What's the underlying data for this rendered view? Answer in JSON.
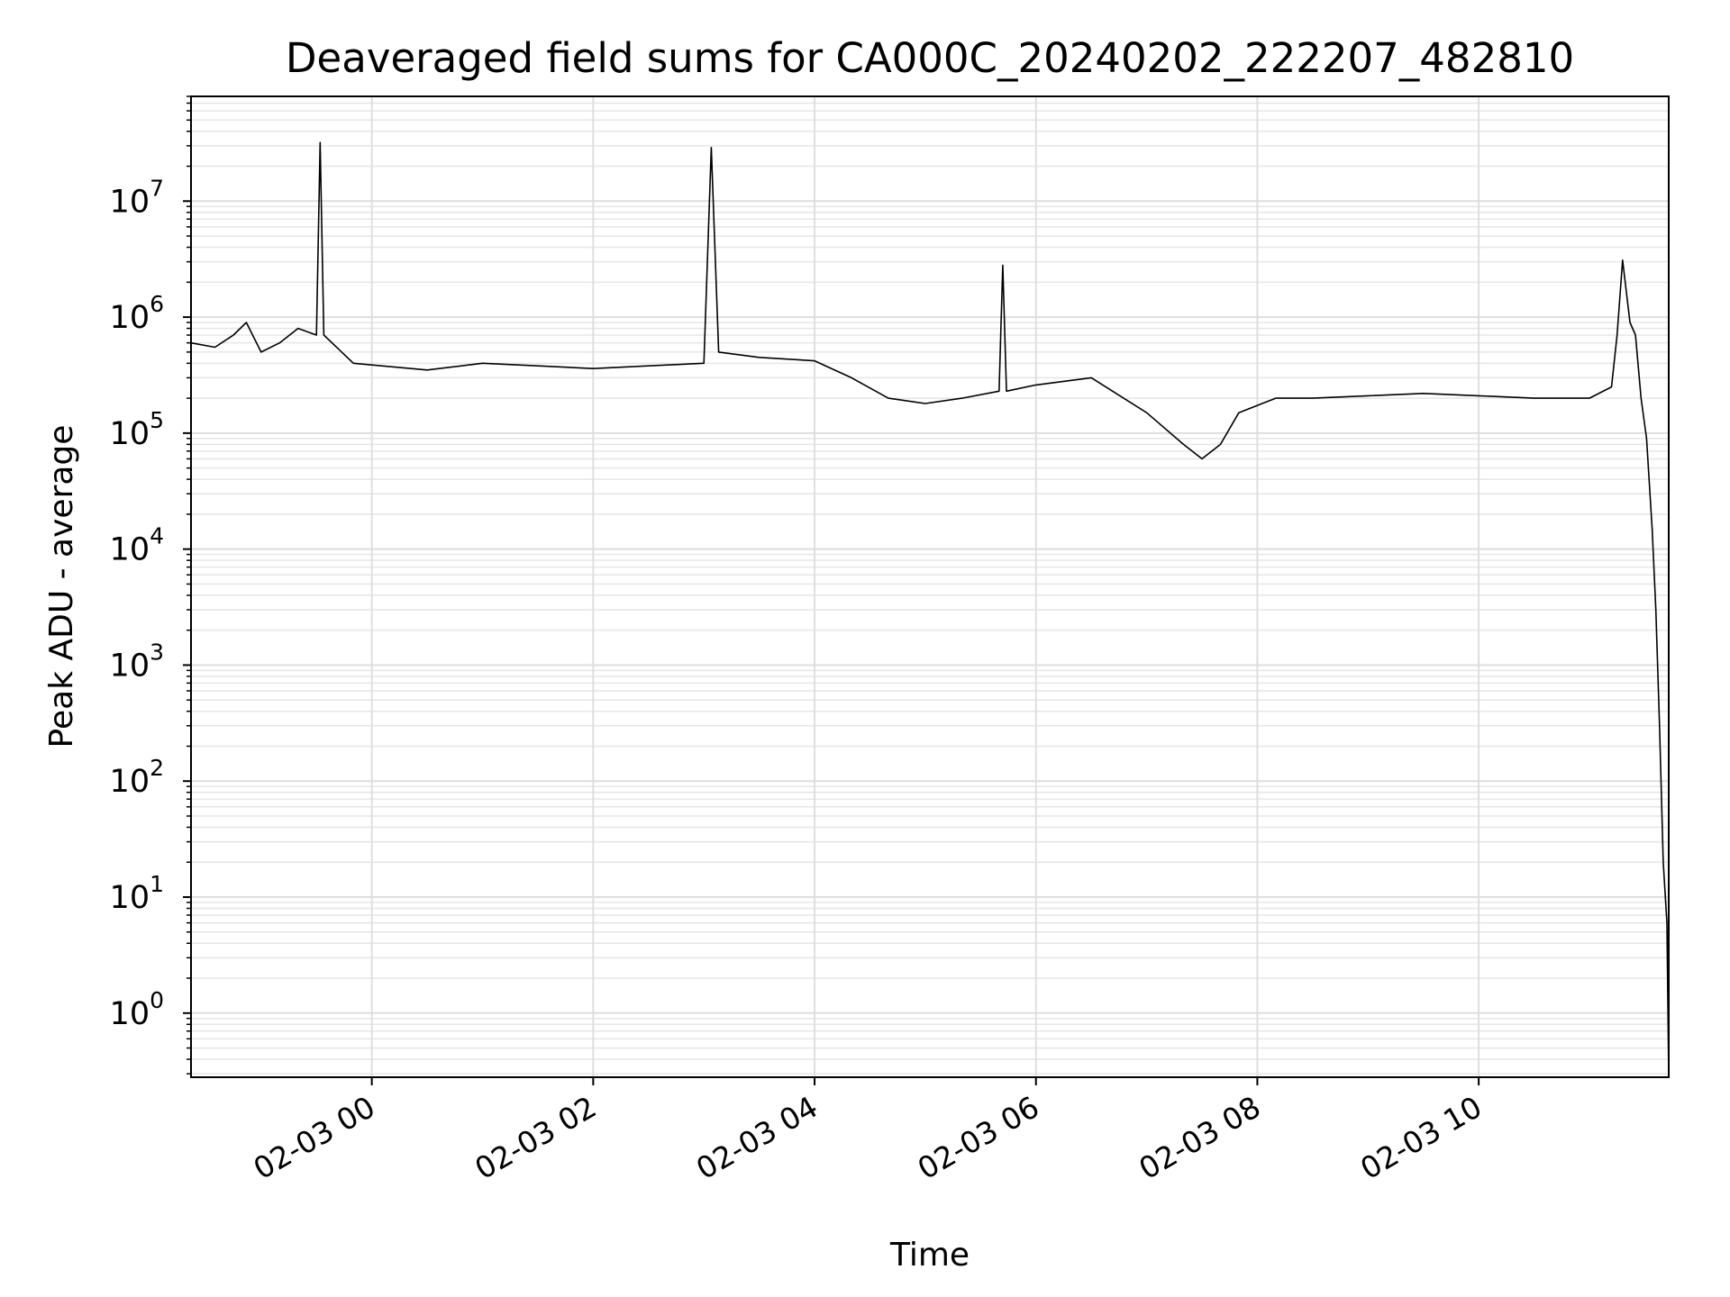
{
  "chart_data": {
    "type": "line",
    "title": "Deaveraged field sums for CA000C_20240202_222207_482810",
    "xlabel": "Time",
    "ylabel": "Peak ADU - average",
    "yscale": "log",
    "grid": true,
    "x_range": [
      "2024-02-02 22:22",
      "2024-02-03 11:43"
    ],
    "ylim": [
      0.28,
      80000000
    ],
    "x_ticks": [
      "02-03 00",
      "02-03 02",
      "02-03 04",
      "02-03 06",
      "02-03 08",
      "02-03 10"
    ],
    "y_ticks": [
      {
        "value": 1,
        "base": "10",
        "exp": "0"
      },
      {
        "value": 10,
        "base": "10",
        "exp": "1"
      },
      {
        "value": 100,
        "base": "10",
        "exp": "2"
      },
      {
        "value": 1000,
        "base": "10",
        "exp": "3"
      },
      {
        "value": 10000,
        "base": "10",
        "exp": "4"
      },
      {
        "value": 100000,
        "base": "10",
        "exp": "5"
      },
      {
        "value": 1000000,
        "base": "10",
        "exp": "6"
      },
      {
        "value": 10000000,
        "base": "10",
        "exp": "7"
      }
    ],
    "line_color": "#000000",
    "series": [
      {
        "x": [
          "2024-02-02 22:22",
          "2024-02-02 22:35",
          "2024-02-02 22:45",
          "2024-02-02 22:52",
          "2024-02-02 23:00",
          "2024-02-02 23:10",
          "2024-02-02 23:20",
          "2024-02-02 23:30",
          "2024-02-02 23:32",
          "2024-02-02 23:34",
          "2024-02-02 23:50",
          "2024-02-03 00:30",
          "2024-02-03 01:00",
          "2024-02-03 01:30",
          "2024-02-03 02:00",
          "2024-02-03 02:30",
          "2024-02-03 03:00",
          "2024-02-03 03:04",
          "2024-02-03 03:08",
          "2024-02-03 03:30",
          "2024-02-03 04:00",
          "2024-02-03 04:20",
          "2024-02-03 04:40",
          "2024-02-03 05:00",
          "2024-02-03 05:20",
          "2024-02-03 05:40",
          "2024-02-03 05:42",
          "2024-02-03 05:44",
          "2024-02-03 06:00",
          "2024-02-03 06:30",
          "2024-02-03 07:00",
          "2024-02-03 07:20",
          "2024-02-03 07:30",
          "2024-02-03 07:40",
          "2024-02-03 07:50",
          "2024-02-03 08:10",
          "2024-02-03 08:30",
          "2024-02-03 09:00",
          "2024-02-03 09:30",
          "2024-02-03 10:00",
          "2024-02-03 10:30",
          "2024-02-03 11:00",
          "2024-02-03 11:12",
          "2024-02-03 11:15",
          "2024-02-03 11:18",
          "2024-02-03 11:22",
          "2024-02-03 11:25",
          "2024-02-03 11:28",
          "2024-02-03 11:31",
          "2024-02-03 11:34",
          "2024-02-03 11:36",
          "2024-02-03 11:38",
          "2024-02-03 11:40",
          "2024-02-03 11:42",
          "2024-02-03 11:43"
        ],
        "y": [
          600000,
          550000,
          700000,
          900000,
          500000,
          600000,
          800000,
          700000,
          32000000,
          700000,
          400000,
          350000,
          400000,
          380000,
          360000,
          380000,
          400000,
          29000000,
          500000,
          450000,
          420000,
          300000,
          200000,
          180000,
          200000,
          230000,
          2800000,
          230000,
          260000,
          300000,
          150000,
          80000,
          60000,
          80000,
          150000,
          200000,
          200000,
          210000,
          220000,
          210000,
          200000,
          200000,
          250000,
          700000,
          3100000,
          900000,
          700000,
          200000,
          90000,
          15000,
          3000,
          300,
          20,
          6,
          0.28
        ]
      }
    ]
  }
}
